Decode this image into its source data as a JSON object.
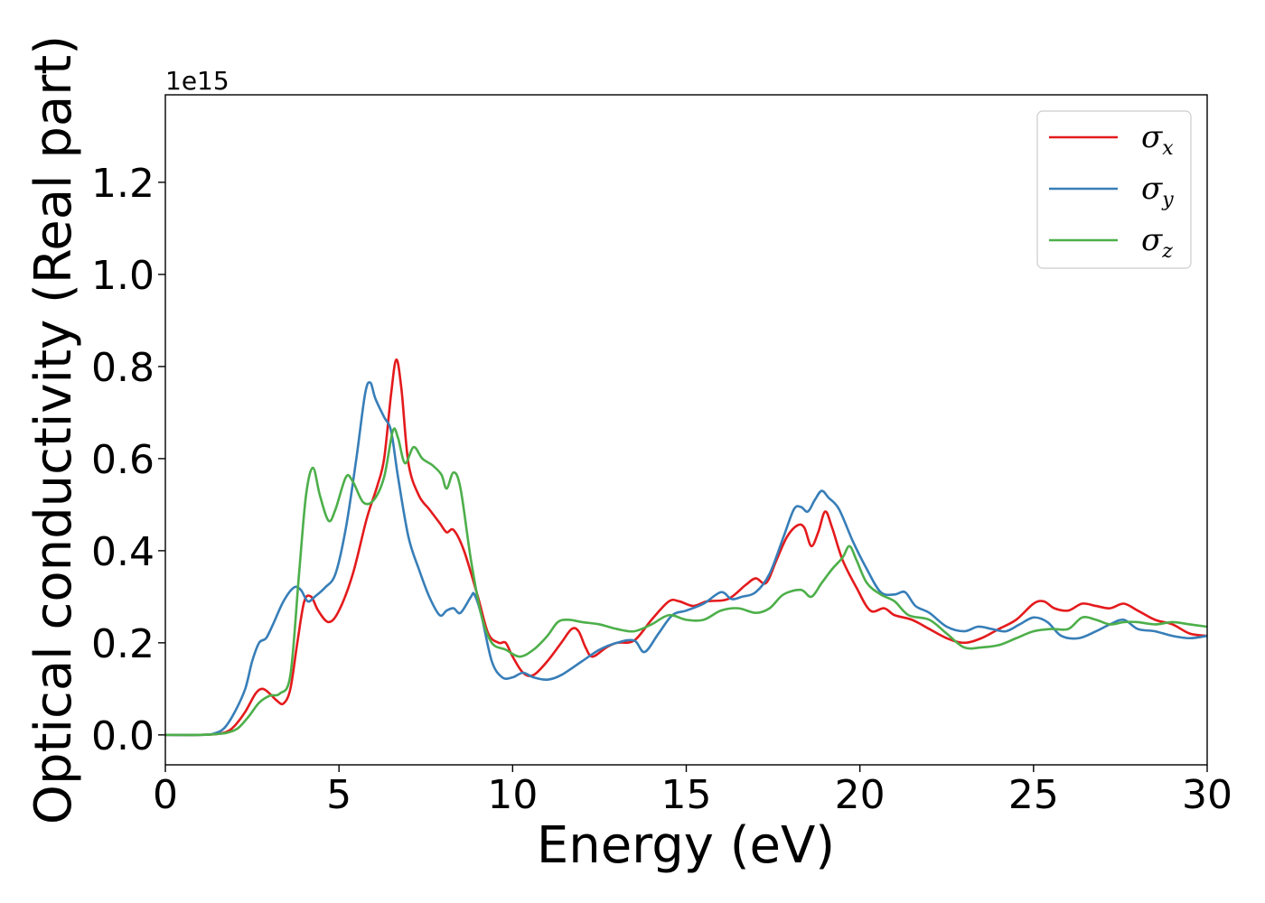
{
  "chart_data": {
    "type": "line",
    "xlabel": "Energy (eV)",
    "ylabel": "Optical conductivity (Real part)",
    "y_offset_label": "1e15",
    "xlim": [
      0,
      30
    ],
    "ylim": [
      -0.065,
      1.39
    ],
    "x_ticks": [
      0,
      5,
      10,
      15,
      20,
      25,
      30
    ],
    "y_ticks": [
      0.0,
      0.2,
      0.4,
      0.6,
      0.8,
      1.0,
      1.2
    ],
    "x_tick_labels": [
      "0",
      "5",
      "10",
      "15",
      "20",
      "25",
      "30"
    ],
    "y_tick_labels": [
      "0.0",
      "0.2",
      "0.4",
      "0.6",
      "0.8",
      "1.0",
      "1.2"
    ],
    "grid": false,
    "legend_position": "top-right",
    "series": [
      {
        "name": "σx",
        "symbol": "σ",
        "subscript": "x",
        "color": "#e41a1c",
        "points": [
          [
            0,
            0
          ],
          [
            1,
            0
          ],
          [
            1.5,
            0.002
          ],
          [
            1.8,
            0.008
          ],
          [
            2.0,
            0.02
          ],
          [
            2.3,
            0.05
          ],
          [
            2.6,
            0.09
          ],
          [
            2.8,
            0.1
          ],
          [
            3.0,
            0.09
          ],
          [
            3.2,
            0.075
          ],
          [
            3.4,
            0.068
          ],
          [
            3.6,
            0.1
          ],
          [
            3.8,
            0.2
          ],
          [
            4.0,
            0.29
          ],
          [
            4.2,
            0.3
          ],
          [
            4.4,
            0.27
          ],
          [
            4.7,
            0.245
          ],
          [
            5.0,
            0.27
          ],
          [
            5.4,
            0.35
          ],
          [
            5.8,
            0.47
          ],
          [
            6.1,
            0.54
          ],
          [
            6.3,
            0.6
          ],
          [
            6.5,
            0.74
          ],
          [
            6.65,
            0.815
          ],
          [
            6.8,
            0.75
          ],
          [
            7.0,
            0.59
          ],
          [
            7.3,
            0.52
          ],
          [
            7.6,
            0.49
          ],
          [
            7.9,
            0.46
          ],
          [
            8.1,
            0.44
          ],
          [
            8.3,
            0.445
          ],
          [
            8.6,
            0.4
          ],
          [
            9.0,
            0.3
          ],
          [
            9.3,
            0.22
          ],
          [
            9.6,
            0.2
          ],
          [
            9.8,
            0.2
          ],
          [
            10.0,
            0.17
          ],
          [
            10.3,
            0.135
          ],
          [
            10.6,
            0.13
          ],
          [
            11.0,
            0.16
          ],
          [
            11.4,
            0.2
          ],
          [
            11.7,
            0.23
          ],
          [
            11.9,
            0.225
          ],
          [
            12.1,
            0.19
          ],
          [
            12.3,
            0.17
          ],
          [
            12.7,
            0.19
          ],
          [
            13.0,
            0.2
          ],
          [
            13.5,
            0.205
          ],
          [
            14.0,
            0.25
          ],
          [
            14.5,
            0.29
          ],
          [
            14.8,
            0.29
          ],
          [
            15.2,
            0.28
          ],
          [
            15.6,
            0.29
          ],
          [
            16.2,
            0.295
          ],
          [
            16.7,
            0.325
          ],
          [
            17.0,
            0.34
          ],
          [
            17.3,
            0.33
          ],
          [
            17.6,
            0.38
          ],
          [
            17.9,
            0.43
          ],
          [
            18.2,
            0.455
          ],
          [
            18.4,
            0.45
          ],
          [
            18.6,
            0.41
          ],
          [
            18.8,
            0.44
          ],
          [
            19.0,
            0.485
          ],
          [
            19.2,
            0.45
          ],
          [
            19.5,
            0.38
          ],
          [
            19.9,
            0.32
          ],
          [
            20.3,
            0.27
          ],
          [
            20.7,
            0.275
          ],
          [
            21.0,
            0.26
          ],
          [
            21.5,
            0.25
          ],
          [
            22.0,
            0.23
          ],
          [
            22.5,
            0.21
          ],
          [
            23.0,
            0.2
          ],
          [
            23.5,
            0.21
          ],
          [
            24.0,
            0.23
          ],
          [
            24.5,
            0.25
          ],
          [
            25.0,
            0.285
          ],
          [
            25.3,
            0.29
          ],
          [
            25.6,
            0.275
          ],
          [
            26.0,
            0.27
          ],
          [
            26.4,
            0.285
          ],
          [
            26.8,
            0.28
          ],
          [
            27.2,
            0.275
          ],
          [
            27.6,
            0.285
          ],
          [
            28.0,
            0.27
          ],
          [
            28.5,
            0.25
          ],
          [
            29.0,
            0.24
          ],
          [
            29.5,
            0.22
          ],
          [
            30.0,
            0.215
          ]
        ]
      },
      {
        "name": "σy",
        "symbol": "σ",
        "subscript": "y",
        "color": "#377eb8",
        "points": [
          [
            0,
            0
          ],
          [
            1,
            0
          ],
          [
            1.4,
            0.003
          ],
          [
            1.7,
            0.015
          ],
          [
            2.0,
            0.05
          ],
          [
            2.3,
            0.1
          ],
          [
            2.5,
            0.16
          ],
          [
            2.7,
            0.2
          ],
          [
            2.9,
            0.21
          ],
          [
            3.1,
            0.24
          ],
          [
            3.4,
            0.29
          ],
          [
            3.7,
            0.32
          ],
          [
            3.9,
            0.315
          ],
          [
            4.1,
            0.29
          ],
          [
            4.3,
            0.3
          ],
          [
            4.6,
            0.32
          ],
          [
            4.9,
            0.35
          ],
          [
            5.2,
            0.45
          ],
          [
            5.5,
            0.6
          ],
          [
            5.75,
            0.74
          ],
          [
            5.9,
            0.765
          ],
          [
            6.05,
            0.73
          ],
          [
            6.3,
            0.69
          ],
          [
            6.5,
            0.66
          ],
          [
            6.7,
            0.56
          ],
          [
            7.0,
            0.43
          ],
          [
            7.3,
            0.36
          ],
          [
            7.6,
            0.3
          ],
          [
            7.9,
            0.26
          ],
          [
            8.1,
            0.27
          ],
          [
            8.3,
            0.275
          ],
          [
            8.5,
            0.265
          ],
          [
            8.8,
            0.3
          ],
          [
            8.9,
            0.305
          ],
          [
            9.1,
            0.26
          ],
          [
            9.4,
            0.16
          ],
          [
            9.7,
            0.125
          ],
          [
            10.0,
            0.125
          ],
          [
            10.3,
            0.135
          ],
          [
            10.6,
            0.125
          ],
          [
            11.0,
            0.12
          ],
          [
            11.4,
            0.13
          ],
          [
            12.0,
            0.16
          ],
          [
            12.5,
            0.185
          ],
          [
            13.0,
            0.2
          ],
          [
            13.5,
            0.205
          ],
          [
            13.8,
            0.18
          ],
          [
            14.2,
            0.22
          ],
          [
            14.6,
            0.26
          ],
          [
            15.0,
            0.27
          ],
          [
            15.5,
            0.285
          ],
          [
            16.0,
            0.31
          ],
          [
            16.3,
            0.295
          ],
          [
            16.6,
            0.3
          ],
          [
            17.0,
            0.31
          ],
          [
            17.4,
            0.35
          ],
          [
            17.8,
            0.43
          ],
          [
            18.1,
            0.49
          ],
          [
            18.3,
            0.495
          ],
          [
            18.5,
            0.485
          ],
          [
            18.7,
            0.51
          ],
          [
            18.9,
            0.53
          ],
          [
            19.1,
            0.515
          ],
          [
            19.4,
            0.49
          ],
          [
            19.8,
            0.42
          ],
          [
            20.2,
            0.36
          ],
          [
            20.6,
            0.31
          ],
          [
            21.0,
            0.305
          ],
          [
            21.3,
            0.31
          ],
          [
            21.6,
            0.28
          ],
          [
            22.0,
            0.265
          ],
          [
            22.5,
            0.235
          ],
          [
            23.0,
            0.225
          ],
          [
            23.4,
            0.235
          ],
          [
            23.8,
            0.23
          ],
          [
            24.2,
            0.225
          ],
          [
            24.6,
            0.24
          ],
          [
            25.0,
            0.255
          ],
          [
            25.4,
            0.245
          ],
          [
            25.8,
            0.215
          ],
          [
            26.3,
            0.21
          ],
          [
            26.8,
            0.225
          ],
          [
            27.2,
            0.24
          ],
          [
            27.6,
            0.25
          ],
          [
            28.0,
            0.23
          ],
          [
            28.5,
            0.225
          ],
          [
            29.0,
            0.215
          ],
          [
            29.5,
            0.21
          ],
          [
            30.0,
            0.215
          ]
        ]
      },
      {
        "name": "σz",
        "symbol": "σ",
        "subscript": "z",
        "color": "#4daf4a",
        "points": [
          [
            0,
            0
          ],
          [
            1,
            0
          ],
          [
            1.5,
            0.002
          ],
          [
            1.8,
            0.005
          ],
          [
            2.1,
            0.015
          ],
          [
            2.4,
            0.04
          ],
          [
            2.7,
            0.07
          ],
          [
            3.0,
            0.085
          ],
          [
            3.3,
            0.09
          ],
          [
            3.6,
            0.13
          ],
          [
            3.85,
            0.35
          ],
          [
            4.05,
            0.52
          ],
          [
            4.25,
            0.58
          ],
          [
            4.45,
            0.52
          ],
          [
            4.7,
            0.465
          ],
          [
            4.9,
            0.49
          ],
          [
            5.2,
            0.56
          ],
          [
            5.4,
            0.55
          ],
          [
            5.7,
            0.505
          ],
          [
            6.0,
            0.51
          ],
          [
            6.3,
            0.56
          ],
          [
            6.55,
            0.66
          ],
          [
            6.7,
            0.645
          ],
          [
            6.9,
            0.59
          ],
          [
            7.15,
            0.625
          ],
          [
            7.4,
            0.6
          ],
          [
            7.7,
            0.585
          ],
          [
            7.95,
            0.565
          ],
          [
            8.1,
            0.535
          ],
          [
            8.3,
            0.57
          ],
          [
            8.5,
            0.535
          ],
          [
            8.8,
            0.38
          ],
          [
            9.1,
            0.26
          ],
          [
            9.4,
            0.2
          ],
          [
            9.8,
            0.185
          ],
          [
            10.2,
            0.17
          ],
          [
            10.6,
            0.185
          ],
          [
            11.0,
            0.215
          ],
          [
            11.3,
            0.245
          ],
          [
            11.6,
            0.25
          ],
          [
            12.0,
            0.245
          ],
          [
            12.5,
            0.24
          ],
          [
            13.0,
            0.23
          ],
          [
            13.5,
            0.225
          ],
          [
            14.0,
            0.24
          ],
          [
            14.5,
            0.26
          ],
          [
            15.0,
            0.25
          ],
          [
            15.5,
            0.25
          ],
          [
            16.0,
            0.27
          ],
          [
            16.5,
            0.275
          ],
          [
            17.0,
            0.265
          ],
          [
            17.4,
            0.275
          ],
          [
            17.8,
            0.305
          ],
          [
            18.3,
            0.315
          ],
          [
            18.6,
            0.3
          ],
          [
            18.9,
            0.33
          ],
          [
            19.2,
            0.36
          ],
          [
            19.5,
            0.385
          ],
          [
            19.7,
            0.41
          ],
          [
            19.9,
            0.38
          ],
          [
            20.2,
            0.33
          ],
          [
            20.6,
            0.305
          ],
          [
            21.0,
            0.29
          ],
          [
            21.4,
            0.26
          ],
          [
            22.0,
            0.25
          ],
          [
            22.5,
            0.22
          ],
          [
            23.0,
            0.19
          ],
          [
            23.5,
            0.19
          ],
          [
            24.0,
            0.195
          ],
          [
            24.5,
            0.21
          ],
          [
            25.0,
            0.225
          ],
          [
            25.5,
            0.23
          ],
          [
            26.0,
            0.23
          ],
          [
            26.4,
            0.255
          ],
          [
            26.8,
            0.25
          ],
          [
            27.2,
            0.24
          ],
          [
            27.6,
            0.245
          ],
          [
            28.0,
            0.245
          ],
          [
            28.5,
            0.24
          ],
          [
            29.0,
            0.245
          ],
          [
            29.5,
            0.24
          ],
          [
            30.0,
            0.235
          ]
        ]
      }
    ]
  }
}
